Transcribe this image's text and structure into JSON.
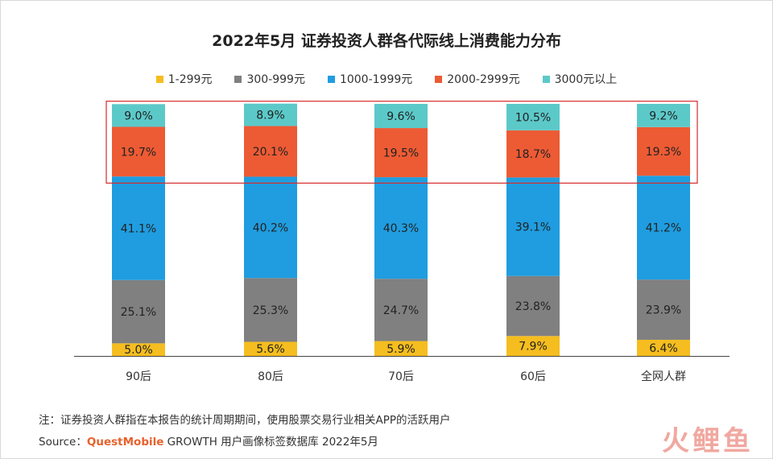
{
  "title": "2022年5月 证券投资人群各代际线上消费能力分布",
  "chart_data": {
    "type": "bar",
    "stacked": true,
    "categories": [
      "90后",
      "80后",
      "70后",
      "60后",
      "全网人群"
    ],
    "series": [
      {
        "name": "1-299元",
        "color": "#f5bd1f",
        "values": [
          5.0,
          5.6,
          5.9,
          7.9,
          6.4
        ]
      },
      {
        "name": "300-999元",
        "color": "#808080",
        "values": [
          25.1,
          25.3,
          24.7,
          23.8,
          23.9
        ]
      },
      {
        "name": "1000-1999元",
        "color": "#1f9de0",
        "values": [
          41.1,
          40.2,
          40.3,
          39.1,
          41.2
        ]
      },
      {
        "name": "2000-2999元",
        "color": "#ed5b34",
        "values": [
          19.7,
          20.1,
          19.5,
          18.7,
          19.3
        ]
      },
      {
        "name": "3000元以上",
        "color": "#5cc9c9",
        "values": [
          9.0,
          8.9,
          9.6,
          10.5,
          9.2
        ]
      }
    ],
    "labels": [
      [
        "5.0%",
        "5.6%",
        "5.9%",
        "7.9%",
        "6.4%"
      ],
      [
        "25.1%",
        "25.3%",
        "24.7%",
        "23.8%",
        "23.9%"
      ],
      [
        "41.1%",
        "40.2%",
        "40.3%",
        "39.1%",
        "41.2%"
      ],
      [
        "19.7%",
        "20.1%",
        "19.5%",
        "18.7%",
        "19.3%"
      ],
      [
        "9.0%",
        "8.9%",
        "9.6%",
        "10.5%",
        "9.2%"
      ]
    ],
    "legend_position": "top",
    "ylim": [
      0,
      100
    ],
    "highlight_series": [
      "2000-2999元",
      "3000元以上"
    ],
    "highlight_color": "#d62b2b"
  },
  "footnote": "注：证券投资人群指在本报告的统计周期期间，使用股票交易行业相关APP的活跃用户",
  "source": {
    "label": "Source：",
    "brand": "QuestMobile",
    "text": " GROWTH 用户画像标签数据库 2022年5月"
  },
  "logo_text": "火鲤鱼"
}
